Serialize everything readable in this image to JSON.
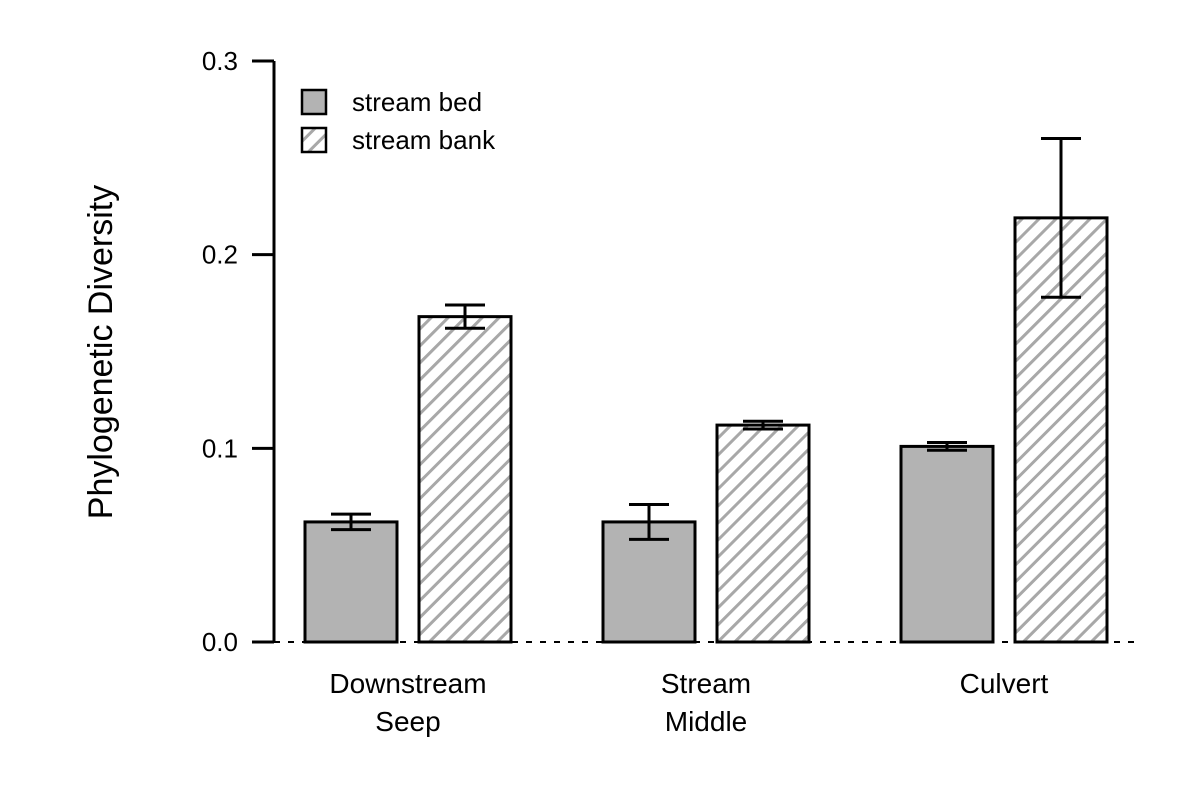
{
  "chart_data": {
    "type": "bar",
    "title": "",
    "xlabel": "",
    "ylabel": "Phylogenetic Diversity",
    "ylim": [
      0,
      0.3
    ],
    "yticks": [
      "0.0",
      "0.1",
      "0.2",
      "0.3"
    ],
    "grid": false,
    "legend_position": "top-left",
    "categories": [
      [
        "Downstream",
        "Seep"
      ],
      [
        "Stream",
        "Middle"
      ],
      [
        "Culvert"
      ]
    ],
    "series": [
      {
        "name": "stream bed",
        "fill": "solid",
        "color": "#b3b3b3",
        "values": [
          0.062,
          0.062,
          0.101
        ],
        "error": [
          0.004,
          0.009,
          0.002
        ]
      },
      {
        "name": "stream bank",
        "fill": "hatched",
        "color": "#b3b3b3",
        "values": [
          0.168,
          0.112,
          0.219
        ],
        "error": [
          0.006,
          0.002,
          0.041
        ]
      }
    ],
    "reference_line": {
      "y": 0,
      "style": "dashed"
    }
  }
}
